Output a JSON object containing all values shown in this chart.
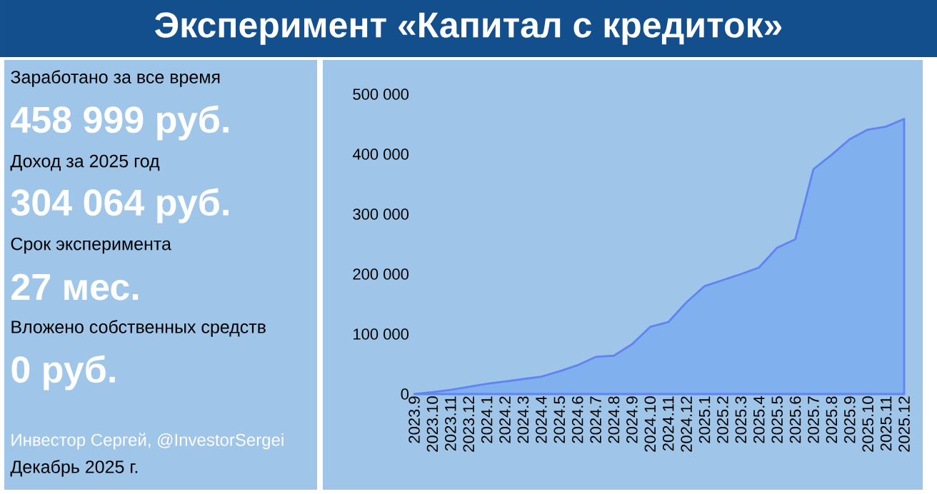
{
  "chart_data": {
    "type": "area",
    "title": "Эксперимент «Капитал с кредиток»",
    "categories": [
      "2023.9",
      "2023.10",
      "2023.11",
      "2023.12",
      "2024.1",
      "2024.2",
      "2024.3",
      "2024.4",
      "2024.5",
      "2024.6",
      "2024.7",
      "2024.8",
      "2024.9",
      "2024.10",
      "2024.11",
      "2024.12",
      "2025.1",
      "2025.2",
      "2025.3",
      "2025.4",
      "2025.5",
      "2025.6",
      "2025.7",
      "2025.8",
      "2025.9",
      "2025.10",
      "2025.11",
      "2025.12"
    ],
    "series": [
      {
        "color": "#80b0ee",
        "values": [
          0,
          3000,
          7000,
          12000,
          17000,
          21000,
          25000,
          29000,
          38000,
          48000,
          62000,
          64000,
          83000,
          112000,
          120000,
          153000,
          180000,
          190000,
          200000,
          211000,
          244000,
          258000,
          375000,
          399000,
          425000,
          441000,
          446000,
          459000
        ]
      }
    ],
    "ylim": [
      0,
      500000
    ],
    "yticks": [
      0,
      {
        "value": 100000,
        "label": "100 000"
      },
      {
        "value": 200000,
        "label": "200 000"
      },
      {
        "value": 300000,
        "label": "300 000"
      },
      {
        "value": 400000,
        "label": "400 000"
      },
      {
        "value": 500000,
        "label": "500 000"
      }
    ],
    "annotations": [
      "Заработано за все время",
      "458 999 руб.",
      "Доход за 2025 год",
      "304 064 руб.",
      "Срок эксперимента",
      "27 мес.",
      "Вложено собственных средств",
      "0 руб.",
      "Инвестор Сергей, @InvestorSergei",
      "Декабрь 2025 г."
    ]
  }
}
